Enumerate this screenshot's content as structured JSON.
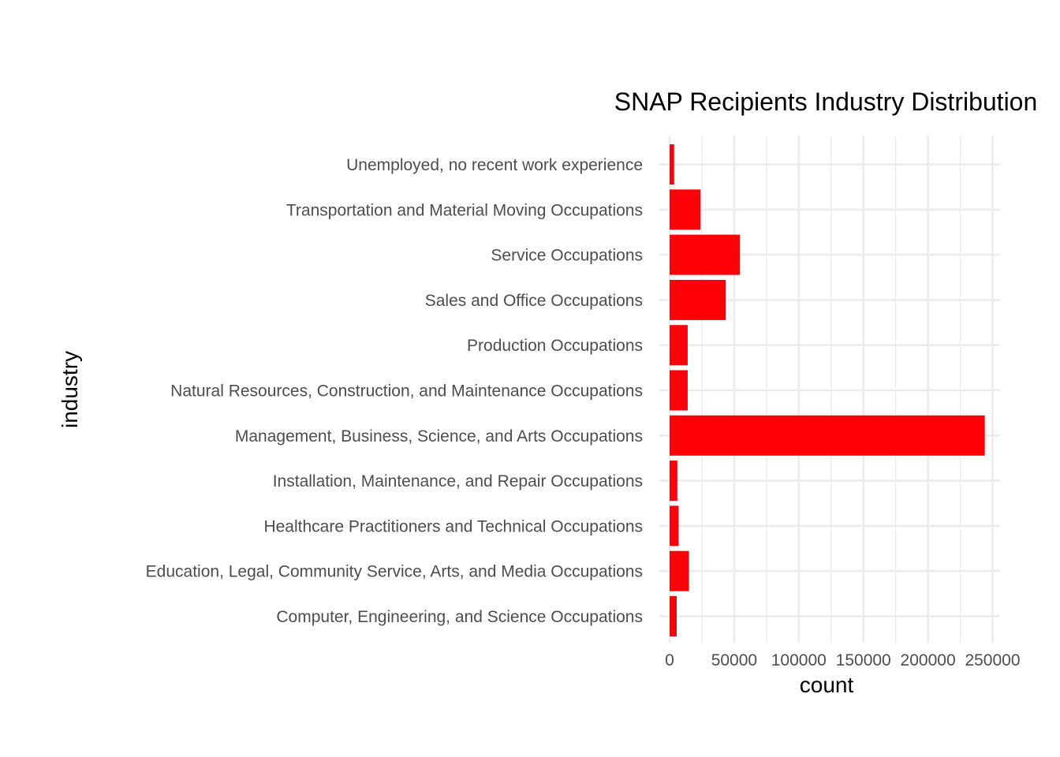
{
  "chart_data": {
    "type": "bar",
    "orientation": "horizontal",
    "title": "SNAP Recipients Industry Distribution",
    "xlabel": "count",
    "ylabel": "industry",
    "categories": [
      "Computer, Engineering, and Science Occupations",
      "Education, Legal, Community Service, Arts, and Media Occupations",
      "Healthcare Practitioners and Technical Occupations",
      "Installation, Maintenance, and Repair Occupations",
      "Management, Business, Science, and Arts Occupations",
      "Natural Resources, Construction, and Maintenance Occupations",
      "Production Occupations",
      "Sales and Office Occupations",
      "Service Occupations",
      "Transportation and Material Moving Occupations",
      "Unemployed, no recent work experience"
    ],
    "values": [
      5500,
      15000,
      7000,
      6000,
      244000,
      14000,
      14000,
      43500,
      54500,
      24000,
      3500
    ],
    "xlim": [
      0,
      256000
    ],
    "xticks": [
      0,
      50000,
      100000,
      150000,
      200000,
      250000
    ],
    "xtick_labels": [
      "0",
      "50000",
      "100000",
      "150000",
      "200000",
      "250000"
    ],
    "bar_color": "#ff0008",
    "grid": true,
    "grid_color": "#ebebeb",
    "legend": "none"
  }
}
